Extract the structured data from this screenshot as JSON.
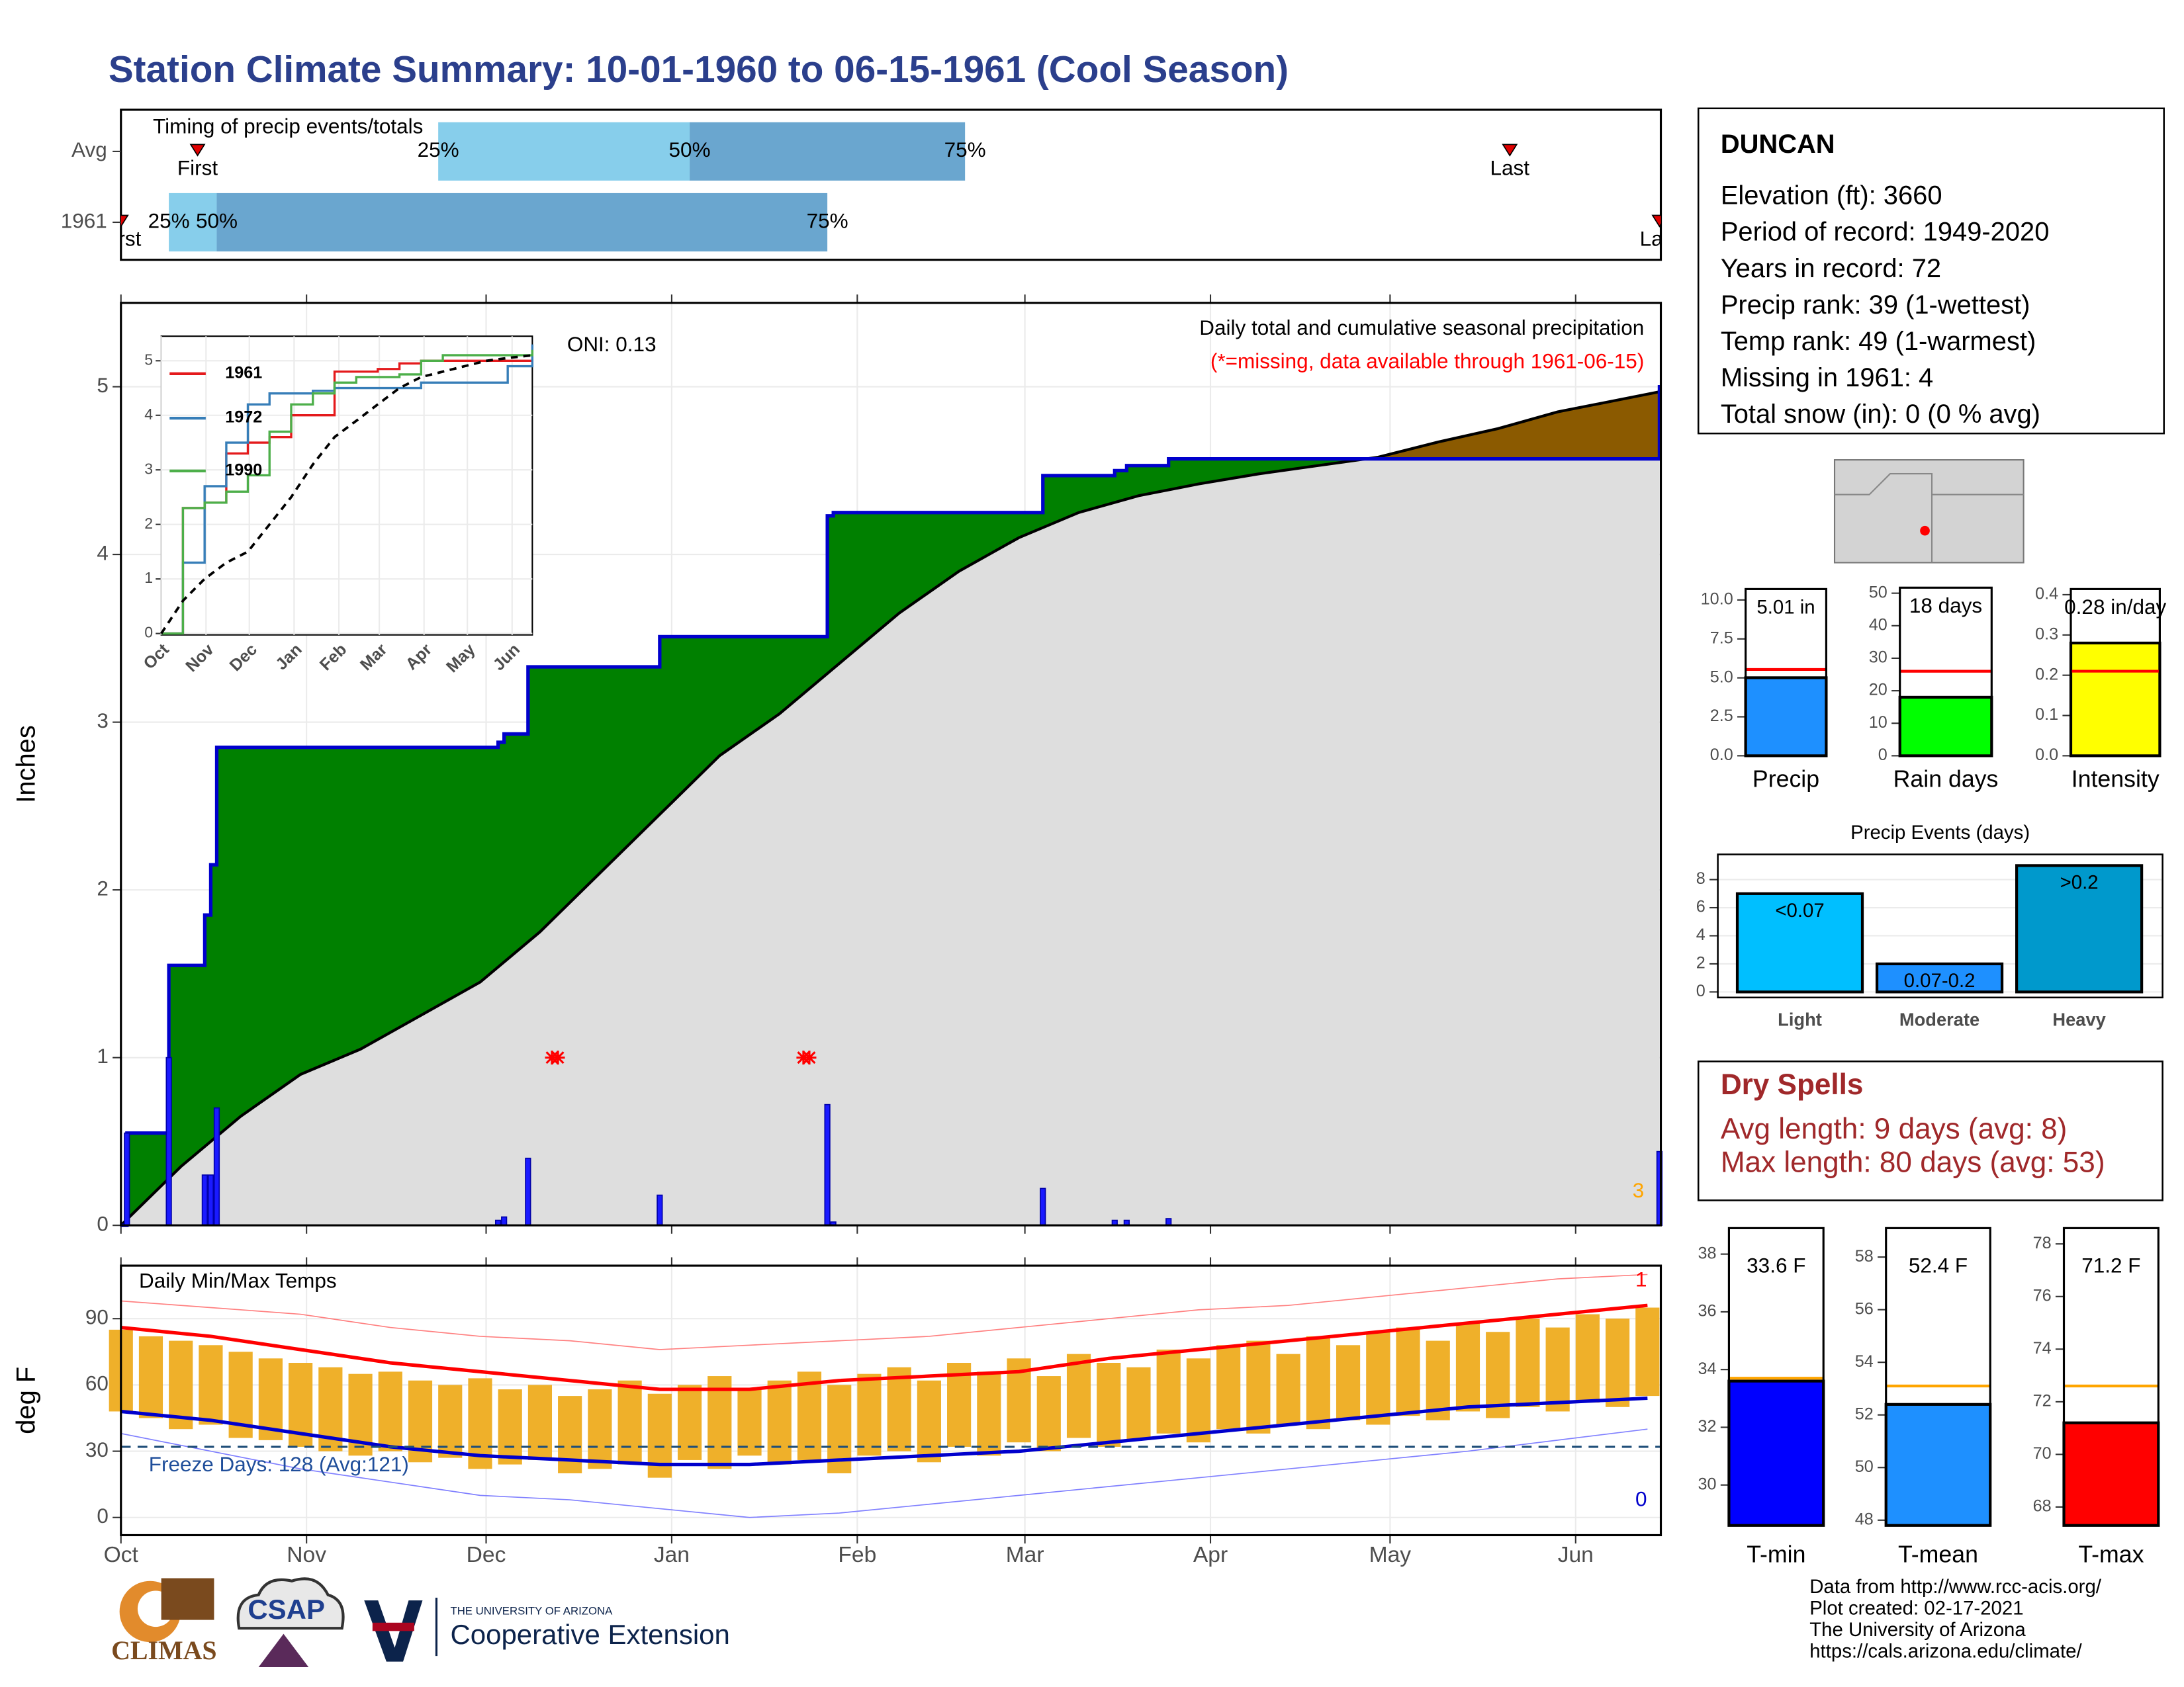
{
  "title": "Station Climate Summary: 10-01-1960 to 06-15-1961 (Cool Season)",
  "chart_data": [
    {
      "type": "timing",
      "title": "Timing of precip events/totals",
      "xlim": [
        0,
        257
      ],
      "labels": {
        "first": "First",
        "last": "Last",
        "p25": "25%",
        "p50": "50%",
        "p75": "75%"
      },
      "rows": [
        {
          "name": "Avg",
          "first": 12.8,
          "p25": 53,
          "p50": 95,
          "p75": 141,
          "last": 232
        },
        {
          "name": "1961",
          "first": 0,
          "p25": 8,
          "p50": 16,
          "p75": 118,
          "last": 257
        }
      ]
    },
    {
      "type": "cumulative",
      "ylabel": "Inches",
      "xlim": [
        0,
        257
      ],
      "ylim": [
        0,
        5.5
      ],
      "yticks": [
        0,
        1,
        2,
        3,
        4,
        5
      ],
      "grid": true,
      "oni": "ONI: 0.13",
      "subtitle": "Daily total and cumulative seasonal precipitation",
      "note": "(*=missing, data available through 1961-06-15)",
      "count_label": "3",
      "events": {
        "x": [
          1,
          8,
          14,
          15,
          16,
          63,
          64,
          68,
          90,
          118,
          119,
          154,
          166,
          168,
          175,
          257
        ],
        "values": [
          0.55,
          1.0,
          0.3,
          0.3,
          0.7,
          0.03,
          0.05,
          0.4,
          0.18,
          0.72,
          0.02,
          0.22,
          0.03,
          0.03,
          0.04,
          0.44
        ],
        "color": "#1a1aff"
      },
      "average": {
        "x": [
          0,
          10,
          20,
          30,
          40,
          50,
          60,
          70,
          80,
          90,
          100,
          110,
          120,
          130,
          140,
          150,
          160,
          170,
          180,
          190,
          200,
          210,
          220,
          230,
          240,
          257
        ],
        "values": [
          0,
          0.35,
          0.65,
          0.9,
          1.05,
          1.25,
          1.45,
          1.75,
          2.1,
          2.45,
          2.8,
          3.05,
          3.35,
          3.65,
          3.9,
          4.1,
          4.25,
          4.35,
          4.42,
          4.48,
          4.53,
          4.58,
          4.67,
          4.75,
          4.85,
          4.97
        ]
      },
      "missing": {
        "x": [
          72,
          73,
          114,
          115
        ],
        "y": [
          1,
          1,
          1,
          1
        ]
      },
      "colors": {
        "above": "#008000",
        "below": "#8b5a00",
        "normal": "#dedede",
        "line": "#0000cc"
      }
    },
    {
      "type": "inset",
      "xlim": [
        0,
        257
      ],
      "ylim": [
        0,
        5.45
      ],
      "yticks": [
        0,
        1,
        2,
        3,
        4,
        5
      ],
      "xticks": [
        {
          "value": 0,
          "label": "Oct"
        },
        {
          "value": 31,
          "label": "Nov"
        },
        {
          "value": 61,
          "label": "Dec"
        },
        {
          "value": 92,
          "label": "Jan"
        },
        {
          "value": 123,
          "label": "Feb"
        },
        {
          "value": 151,
          "label": "Mar"
        },
        {
          "value": 182,
          "label": "Apr"
        },
        {
          "value": 212,
          "label": "May"
        },
        {
          "value": 243,
          "label": "Jun"
        }
      ],
      "x": [
        0,
        15,
        30,
        45,
        60,
        75,
        90,
        105,
        120,
        135,
        150,
        165,
        180,
        195,
        210,
        225,
        240,
        257
      ],
      "series": [
        {
          "name": "1961",
          "color": "#e41a1c",
          "values": [
            0,
            2.3,
            2.4,
            3.3,
            3.5,
            3.6,
            4.0,
            4.0,
            4.8,
            4.8,
            4.85,
            4.95,
            5.0,
            5.0,
            5.0,
            5.0,
            5.0,
            5.0
          ]
        },
        {
          "name": "1972",
          "color": "#377eb8",
          "values": [
            0,
            1.3,
            2.7,
            3.5,
            4.2,
            4.4,
            4.4,
            4.45,
            4.5,
            4.5,
            4.5,
            4.5,
            4.6,
            4.6,
            4.6,
            4.6,
            4.9,
            5.3
          ]
        },
        {
          "name": "1990",
          "color": "#4daf4a",
          "values": [
            0,
            2.3,
            2.4,
            2.6,
            2.9,
            3.7,
            4.2,
            4.4,
            4.6,
            4.7,
            4.7,
            4.75,
            5.0,
            5.1,
            5.1,
            5.1,
            5.1,
            5.2
          ]
        },
        {
          "color": "#000000",
          "dashed": true,
          "values": [
            0,
            0.6,
            1.0,
            1.3,
            1.5,
            2.0,
            2.5,
            3.1,
            3.6,
            3.9,
            4.2,
            4.5,
            4.7,
            4.8,
            4.9,
            5.0,
            5.05,
            5.1
          ]
        }
      ]
    },
    {
      "type": "temps",
      "title": "Daily Min/Max Temps",
      "ylabel": "deg F",
      "xlim": [
        0,
        257
      ],
      "ylim": [
        -8,
        114
      ],
      "yticks": [
        0,
        30,
        60,
        90
      ],
      "grid": true,
      "xticks": [
        {
          "value": 0,
          "label": "Oct"
        },
        {
          "value": 31,
          "label": "Nov"
        },
        {
          "value": 61,
          "label": "Dec"
        },
        {
          "value": 92,
          "label": "Jan"
        },
        {
          "value": 123,
          "label": "Feb"
        },
        {
          "value": 151,
          "label": "Mar"
        },
        {
          "value": 182,
          "label": "Apr"
        },
        {
          "value": 212,
          "label": "May"
        },
        {
          "value": 243,
          "label": "Jun"
        }
      ],
      "daily": {
        "color": "#efb02a",
        "x": [
          0,
          5,
          10,
          15,
          20,
          25,
          30,
          35,
          40,
          45,
          50,
          55,
          60,
          65,
          70,
          75,
          80,
          85,
          90,
          95,
          100,
          105,
          110,
          115,
          120,
          125,
          130,
          135,
          140,
          145,
          150,
          155,
          160,
          165,
          170,
          175,
          180,
          185,
          190,
          195,
          200,
          205,
          210,
          215,
          220,
          225,
          230,
          235,
          240,
          245,
          250,
          255
        ],
        "max": [
          85,
          82,
          80,
          78,
          75,
          72,
          70,
          68,
          65,
          66,
          62,
          60,
          63,
          58,
          60,
          55,
          58,
          62,
          56,
          60,
          64,
          58,
          62,
          66,
          60,
          65,
          68,
          62,
          70,
          66,
          72,
          64,
          74,
          70,
          68,
          76,
          72,
          78,
          80,
          74,
          82,
          78,
          84,
          86,
          80,
          88,
          84,
          90,
          86,
          92,
          90,
          95
        ],
        "min": [
          48,
          45,
          40,
          42,
          36,
          35,
          32,
          30,
          28,
          30,
          25,
          27,
          22,
          24,
          26,
          20,
          22,
          24,
          18,
          26,
          22,
          28,
          24,
          26,
          20,
          28,
          30,
          25,
          32,
          28,
          34,
          30,
          36,
          32,
          35,
          38,
          34,
          40,
          38,
          42,
          40,
          44,
          42,
          46,
          44,
          48,
          45,
          50,
          48,
          52,
          50,
          55
        ]
      },
      "x": [
        0,
        15,
        30,
        45,
        60,
        75,
        90,
        105,
        120,
        135,
        150,
        165,
        180,
        195,
        210,
        225,
        240,
        255
      ],
      "series": [
        {
          "color": "#ff8080",
          "width": 0.8,
          "values": [
            98,
            95,
            92,
            86,
            82,
            80,
            76,
            78,
            80,
            82,
            86,
            90,
            94,
            96,
            100,
            104,
            108,
            110
          ]
        },
        {
          "color": "#8080ff",
          "width": 0.8,
          "values": [
            38,
            30,
            22,
            16,
            10,
            8,
            4,
            0,
            2,
            6,
            10,
            14,
            18,
            22,
            26,
            30,
            35,
            40
          ]
        },
        {
          "color": "#ff0000",
          "width": 2.5,
          "values": [
            86,
            82,
            76,
            70,
            66,
            62,
            58,
            58,
            62,
            64,
            66,
            72,
            76,
            80,
            84,
            88,
            92,
            96
          ]
        },
        {
          "color": "#0000cc",
          "width": 2.5,
          "values": [
            48,
            44,
            38,
            32,
            28,
            26,
            24,
            24,
            26,
            28,
            30,
            34,
            38,
            42,
            46,
            50,
            52,
            54
          ]
        }
      ],
      "freeze": {
        "value": 32,
        "label": "Freeze Days: 128 (Avg:121)",
        "color": "#1f4e79"
      },
      "max_count_label": "1",
      "min_count_label": "0"
    },
    {
      "type": "gauge",
      "label": "Precip",
      "values": [
        5.01
      ],
      "value_labels": [
        "5.01 in"
      ],
      "average": 5.54,
      "color": "#1e90ff",
      "avg_color": "#ff0000",
      "ylim": [
        0,
        10.7
      ],
      "yticks": [
        {
          "value": 0,
          "label": "0.0"
        },
        2.5,
        {
          "value": 5,
          "label": "5.0"
        },
        7.5,
        {
          "value": 10,
          "label": "10.0"
        }
      ]
    },
    {
      "type": "gauge",
      "label": "Rain days",
      "values": [
        18
      ],
      "value_labels": [
        "18 days"
      ],
      "average": 26,
      "color": "#00ff00",
      "avg_color": "#ff0000",
      "ylim": [
        0,
        51.7
      ],
      "yticks": [
        0,
        10,
        20,
        30,
        40,
        50
      ]
    },
    {
      "type": "gauge",
      "label": "Intensity",
      "values": [
        0.28
      ],
      "value_labels": [
        "0.28 in/day"
      ],
      "average": 0.21,
      "color": "#ffff00",
      "avg_color": "#ff0000",
      "ylim": [
        0,
        0.414
      ],
      "yticks": [
        {
          "value": 0,
          "label": "0.0"
        },
        0.1,
        0.2,
        0.3,
        0.4
      ]
    },
    {
      "type": "bar",
      "title": "Precip Events (days)",
      "categories": [
        "Light",
        "Moderate",
        "Heavy"
      ],
      "values": [
        7,
        2,
        9
      ],
      "value_labels": [
        "<0.07",
        "0.07-0.2",
        ">0.2"
      ],
      "colors": [
        "#00bfff",
        "#1e90ff",
        "#0099cc"
      ],
      "ylim": [
        0,
        9.3
      ],
      "yticks": [
        0,
        2,
        4,
        6,
        8
      ],
      "grid": true
    },
    {
      "type": "gauge",
      "label": "T-min",
      "values": [
        33.6
      ],
      "value_labels": [
        "33.6 F"
      ],
      "average": 33.7,
      "color": "#0000ff",
      "avg_color": "#ffa500",
      "ylim": [
        28.6,
        38.9
      ],
      "yticks": [
        30,
        32,
        34,
        36,
        38
      ]
    },
    {
      "type": "gauge",
      "label": "T-mean",
      "values": [
        52.4
      ],
      "value_labels": [
        "52.4 F"
      ],
      "average": 53.1,
      "color": "#1e90ff",
      "avg_color": "#ffa500",
      "ylim": [
        47.8,
        59.1
      ],
      "yticks": [
        48,
        50,
        52,
        54,
        56,
        58
      ]
    },
    {
      "type": "gauge",
      "label": "T-max",
      "values": [
        71.2
      ],
      "value_labels": [
        "71.2 F"
      ],
      "average": 72.6,
      "color": "#ff0000",
      "avg_color": "#ffa500",
      "ylim": [
        67.3,
        78.6
      ],
      "yticks": [
        68,
        70,
        72,
        74,
        76,
        78
      ]
    }
  ],
  "station": {
    "name": "DUNCAN",
    "lines": [
      "Elevation (ft): 3660",
      "Period of record: 1949-2020",
      "Years in record: 72",
      "Precip rank: 39 (1-wettest)",
      "Temp rank: 49 (1-warmest)",
      "Missing in 1961: 4",
      "Total snow (in): 0 (0 % avg)"
    ]
  },
  "dry_spells": {
    "title": "Dry Spells",
    "lines": [
      "Avg length: 9 days (avg: 8)",
      "Max length: 80 days (avg: 53)"
    ]
  },
  "footer": [
    "Data from http://www.rcc-acis.org/",
    "Plot created: 02-17-2021",
    "The University of Arizona",
    "https://cals.arizona.edu/climate/"
  ],
  "logos": [
    "CLIMAS",
    "CSAP",
    "THE UNIVERSITY OF ARIZONA",
    "Cooperative Extension"
  ]
}
